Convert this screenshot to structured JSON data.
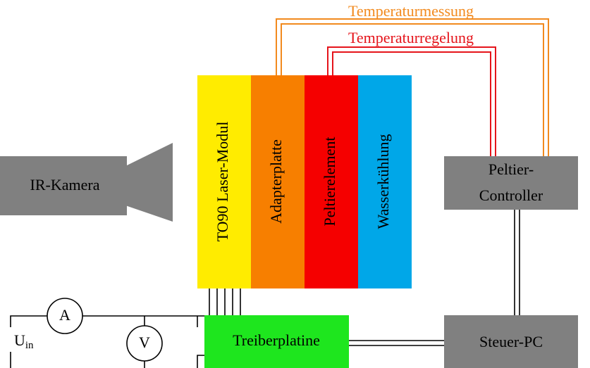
{
  "labels": {
    "temperature_measurement": "Temperaturmessung",
    "temperature_control": "Temperaturregelung"
  },
  "layers": [
    "TO90 Laser-Modul",
    "Adapterplatte",
    "Peltierelement",
    "Wasserkühlung"
  ],
  "camera": "IR-Kamera",
  "controller": [
    "Peltier-",
    "Controller"
  ],
  "driver": "Treiberplatine",
  "pc": "Steuer-PC",
  "circuit": {
    "ammeter": "A",
    "voltmeter": "V",
    "voltage": {
      "main": "U",
      "sub": "in"
    }
  }
}
